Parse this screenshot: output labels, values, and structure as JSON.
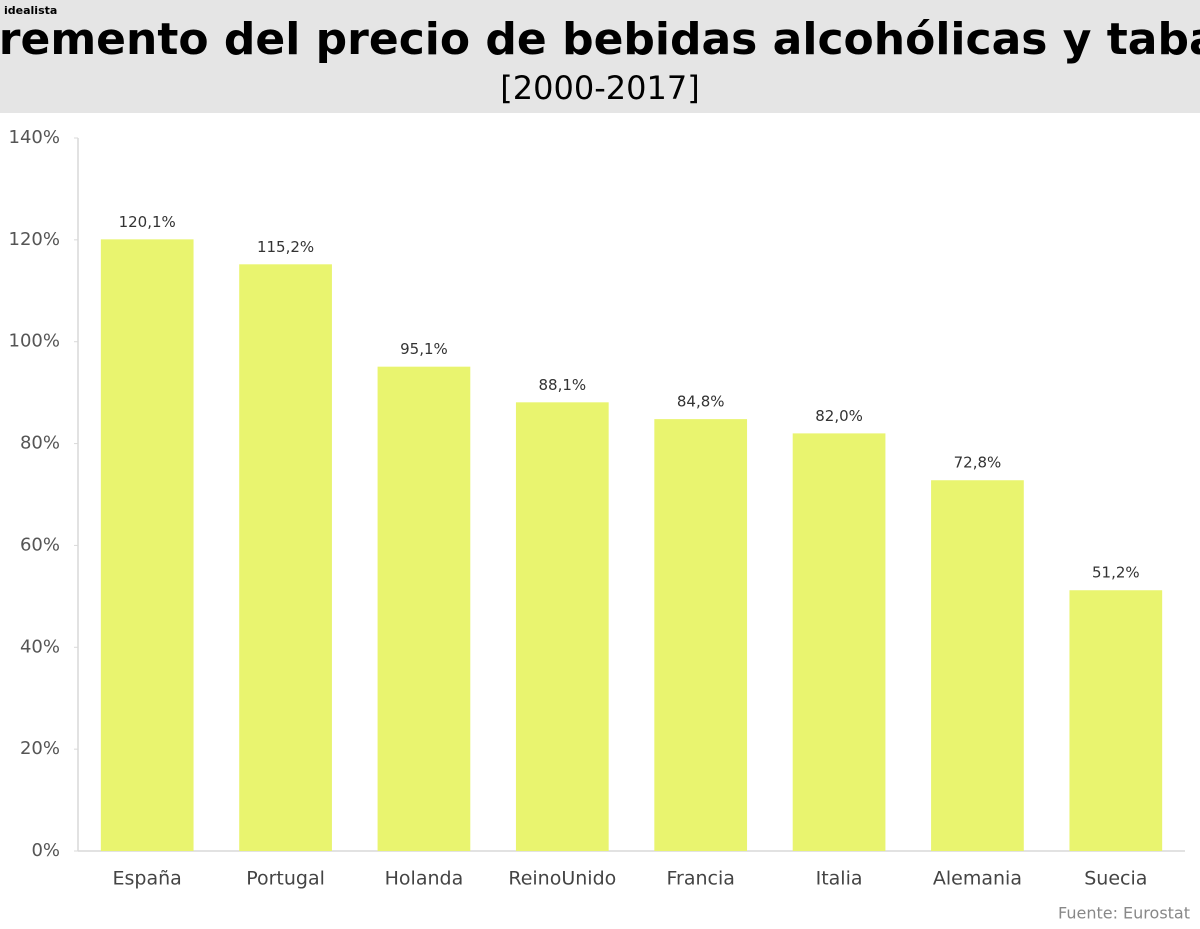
{
  "brand": "idealista",
  "chart_data": {
    "type": "bar",
    "title": "Incremento del precio de bebidas alcohólicas y tabaco",
    "subtitle": "[2000-2017]",
    "source": "Fuente: Eurostat",
    "categories": [
      "España",
      "Portugal",
      "Holanda",
      "ReinoUnido",
      "Francia",
      "Italia",
      "Alemania",
      "Suecia"
    ],
    "values": [
      120.1,
      115.2,
      95.1,
      88.1,
      84.8,
      82.0,
      72.8,
      51.2
    ],
    "value_labels": [
      "120,1%",
      "115,2%",
      "95,1%",
      "88,1%",
      "84,8%",
      "82,0%",
      "72,8%",
      "51,2%"
    ],
    "color": "#e9f46f",
    "ylim": [
      0,
      140
    ],
    "yticks": [
      {
        "value": 0,
        "label": "0%"
      },
      {
        "value": 20,
        "label": "20%"
      },
      {
        "value": 40,
        "label": "40%"
      },
      {
        "value": 60,
        "label": "60%"
      },
      {
        "value": 80,
        "label": "80%"
      },
      {
        "value": 100,
        "label": "100%"
      },
      {
        "value": 120,
        "label": "120%"
      },
      {
        "value": 140,
        "label": "140%"
      }
    ],
    "grid": false
  }
}
